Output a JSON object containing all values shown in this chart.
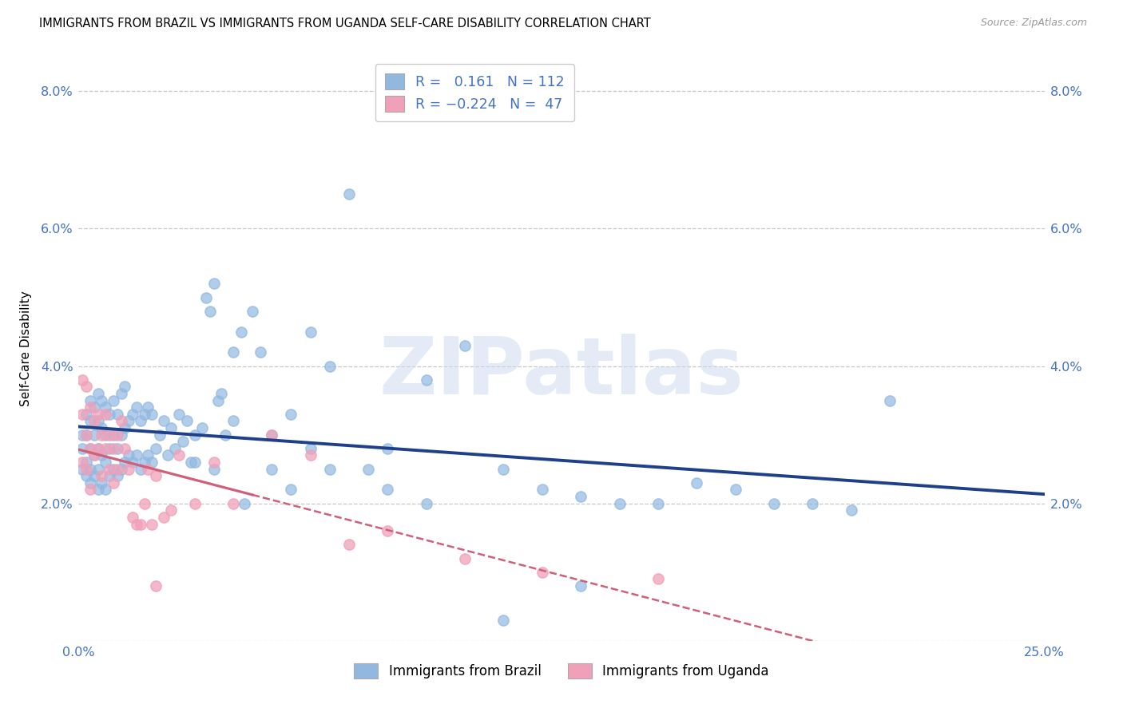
{
  "title": "IMMIGRANTS FROM BRAZIL VS IMMIGRANTS FROM UGANDA SELF-CARE DISABILITY CORRELATION CHART",
  "source": "Source: ZipAtlas.com",
  "ylabel": "Self-Care Disability",
  "xlim": [
    0.0,
    0.25
  ],
  "ylim": [
    0.0,
    0.085
  ],
  "brazil_color": "#92b8e0",
  "uganda_color": "#f0a0b8",
  "brazil_line_color": "#1e3f8a",
  "uganda_line_color": "#d0607a",
  "R_brazil": 0.161,
  "N_brazil": 112,
  "R_uganda": -0.224,
  "N_uganda": 47,
  "tick_color": "#4472c4",
  "grid_color": "#c8c8c8",
  "watermark": "ZIPatlas",
  "background_color": "#ffffff",
  "title_fontsize": 10.5,
  "source_fontsize": 9,
  "tick_fontsize": 11.5,
  "legend_fontsize": 12.5,
  "brazil_x": [
    0.001,
    0.001,
    0.001,
    0.002,
    0.002,
    0.002,
    0.002,
    0.003,
    0.003,
    0.003,
    0.003,
    0.003,
    0.004,
    0.004,
    0.004,
    0.004,
    0.005,
    0.005,
    0.005,
    0.005,
    0.005,
    0.006,
    0.006,
    0.006,
    0.006,
    0.007,
    0.007,
    0.007,
    0.007,
    0.008,
    0.008,
    0.008,
    0.009,
    0.009,
    0.009,
    0.01,
    0.01,
    0.01,
    0.011,
    0.011,
    0.011,
    0.012,
    0.012,
    0.012,
    0.013,
    0.013,
    0.014,
    0.014,
    0.015,
    0.015,
    0.016,
    0.016,
    0.017,
    0.017,
    0.018,
    0.018,
    0.019,
    0.019,
    0.02,
    0.021,
    0.022,
    0.023,
    0.024,
    0.025,
    0.026,
    0.027,
    0.028,
    0.029,
    0.03,
    0.032,
    0.033,
    0.034,
    0.035,
    0.036,
    0.037,
    0.038,
    0.04,
    0.042,
    0.045,
    0.047,
    0.05,
    0.055,
    0.06,
    0.065,
    0.07,
    0.075,
    0.08,
    0.09,
    0.1,
    0.11,
    0.12,
    0.13,
    0.14,
    0.15,
    0.16,
    0.17,
    0.18,
    0.19,
    0.2,
    0.21,
    0.11,
    0.13,
    0.05,
    0.06,
    0.08,
    0.09,
    0.04,
    0.043,
    0.065,
    0.055,
    0.035,
    0.03
  ],
  "brazil_y": [
    0.025,
    0.028,
    0.03,
    0.024,
    0.026,
    0.03,
    0.033,
    0.023,
    0.025,
    0.028,
    0.032,
    0.035,
    0.024,
    0.027,
    0.03,
    0.034,
    0.022,
    0.025,
    0.028,
    0.032,
    0.036,
    0.023,
    0.027,
    0.031,
    0.035,
    0.022,
    0.026,
    0.03,
    0.034,
    0.024,
    0.028,
    0.033,
    0.025,
    0.03,
    0.035,
    0.024,
    0.028,
    0.033,
    0.025,
    0.03,
    0.036,
    0.026,
    0.031,
    0.037,
    0.027,
    0.032,
    0.026,
    0.033,
    0.027,
    0.034,
    0.025,
    0.032,
    0.026,
    0.033,
    0.027,
    0.034,
    0.026,
    0.033,
    0.028,
    0.03,
    0.032,
    0.027,
    0.031,
    0.028,
    0.033,
    0.029,
    0.032,
    0.026,
    0.03,
    0.031,
    0.05,
    0.048,
    0.052,
    0.035,
    0.036,
    0.03,
    0.032,
    0.045,
    0.048,
    0.042,
    0.03,
    0.033,
    0.045,
    0.04,
    0.065,
    0.025,
    0.028,
    0.038,
    0.043,
    0.025,
    0.022,
    0.021,
    0.02,
    0.02,
    0.023,
    0.022,
    0.02,
    0.02,
    0.019,
    0.035,
    0.003,
    0.008,
    0.025,
    0.028,
    0.022,
    0.02,
    0.042,
    0.02,
    0.025,
    0.022,
    0.025,
    0.026
  ],
  "uganda_x": [
    0.001,
    0.001,
    0.001,
    0.002,
    0.002,
    0.002,
    0.003,
    0.003,
    0.003,
    0.004,
    0.004,
    0.005,
    0.005,
    0.006,
    0.006,
    0.007,
    0.007,
    0.008,
    0.008,
    0.009,
    0.009,
    0.01,
    0.01,
    0.011,
    0.012,
    0.013,
    0.014,
    0.015,
    0.016,
    0.017,
    0.018,
    0.019,
    0.02,
    0.022,
    0.024,
    0.026,
    0.03,
    0.035,
    0.04,
    0.05,
    0.06,
    0.07,
    0.08,
    0.1,
    0.12,
    0.15,
    0.02
  ],
  "uganda_y": [
    0.038,
    0.033,
    0.026,
    0.037,
    0.03,
    0.025,
    0.034,
    0.028,
    0.022,
    0.032,
    0.027,
    0.033,
    0.028,
    0.03,
    0.024,
    0.028,
    0.033,
    0.025,
    0.03,
    0.023,
    0.028,
    0.025,
    0.03,
    0.032,
    0.028,
    0.025,
    0.018,
    0.017,
    0.017,
    0.02,
    0.025,
    0.017,
    0.024,
    0.018,
    0.019,
    0.027,
    0.02,
    0.026,
    0.02,
    0.03,
    0.027,
    0.014,
    0.016,
    0.012,
    0.01,
    0.009,
    0.008
  ]
}
